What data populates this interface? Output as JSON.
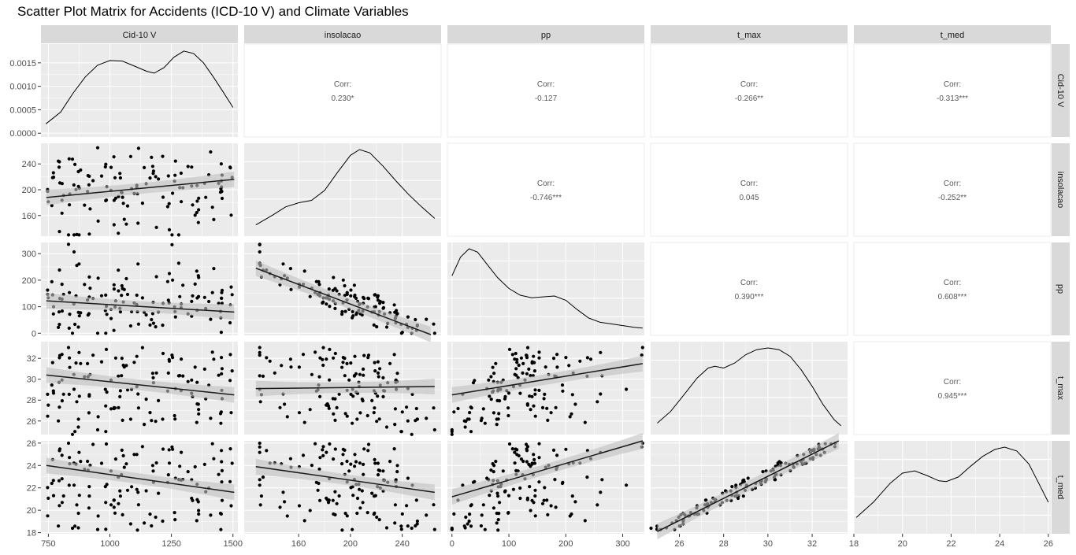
{
  "chart_data": {
    "type": "scatter",
    "title": "Scatter Plot Matrix for Accidents (ICD-10 V) and Climate Variables",
    "variables": [
      "Cid-10 V",
      "insolacao",
      "pp",
      "t_max",
      "t_med"
    ],
    "corr_label": "Corr:",
    "correlations": [
      {
        "row": 0,
        "col": 1,
        "value": "0.230*"
      },
      {
        "row": 0,
        "col": 2,
        "value": "-0.127"
      },
      {
        "row": 0,
        "col": 3,
        "value": "-0.266**"
      },
      {
        "row": 0,
        "col": 4,
        "value": "-0.313***"
      },
      {
        "row": 1,
        "col": 2,
        "value": "-0.746***"
      },
      {
        "row": 1,
        "col": 3,
        "value": "0.045"
      },
      {
        "row": 1,
        "col": 4,
        "value": "-0.252**"
      },
      {
        "row": 2,
        "col": 3,
        "value": "0.390***"
      },
      {
        "row": 2,
        "col": 4,
        "value": "0.608***"
      },
      {
        "row": 3,
        "col": 4,
        "value": "0.945***"
      }
    ],
    "axes": {
      "x": [
        {
          "min": 720,
          "max": 1520,
          "ticks": [
            750,
            1000,
            1250,
            1500
          ]
        },
        {
          "min": 118,
          "max": 270,
          "ticks": [
            160,
            200,
            240
          ]
        },
        {
          "min": -8,
          "max": 338,
          "ticks": [
            0,
            100,
            200,
            300
          ]
        },
        {
          "min": 24.7,
          "max": 33.6,
          "ticks": [
            26,
            28,
            30,
            32
          ]
        },
        {
          "min": 18.0,
          "max": 26.1,
          "ticks": [
            18,
            20,
            22,
            24,
            26
          ]
        }
      ],
      "y": [
        {
          "min": -8e-05,
          "max": 0.0019,
          "ticks": [
            0.0,
            0.0005,
            0.001,
            0.0015
          ],
          "tick_labels": [
            "0.0000",
            "0.0005",
            "0.0010",
            "0.0015"
          ]
        },
        {
          "min": 128,
          "max": 272,
          "ticks": [
            160,
            200,
            240
          ]
        },
        {
          "min": -8,
          "max": 342,
          "ticks": [
            0,
            100,
            200,
            300
          ]
        },
        {
          "min": 24.7,
          "max": 33.6,
          "ticks": [
            26,
            28,
            30,
            32
          ]
        },
        {
          "min": 17.9,
          "max": 26.2,
          "ticks": [
            18,
            20,
            22,
            24,
            26
          ]
        }
      ]
    },
    "densities": [
      [
        [
          740,
          0.0002
        ],
        [
          800,
          0.00045
        ],
        [
          850,
          0.00085
        ],
        [
          900,
          0.0012
        ],
        [
          950,
          0.00145
        ],
        [
          1000,
          0.00155
        ],
        [
          1050,
          0.00154
        ],
        [
          1100,
          0.00143
        ],
        [
          1150,
          0.00132
        ],
        [
          1180,
          0.00128
        ],
        [
          1220,
          0.0014
        ],
        [
          1260,
          0.00162
        ],
        [
          1300,
          0.00175
        ],
        [
          1340,
          0.0017
        ],
        [
          1380,
          0.0015
        ],
        [
          1420,
          0.0012
        ],
        [
          1460,
          0.00088
        ],
        [
          1500,
          0.00055
        ]
      ],
      [
        [
          127,
          0.08
        ],
        [
          140,
          0.2
        ],
        [
          150,
          0.3
        ],
        [
          160,
          0.35
        ],
        [
          170,
          0.38
        ],
        [
          180,
          0.5
        ],
        [
          190,
          0.72
        ],
        [
          200,
          0.93
        ],
        [
          207,
          1.0
        ],
        [
          215,
          0.96
        ],
        [
          225,
          0.8
        ],
        [
          235,
          0.62
        ],
        [
          245,
          0.45
        ],
        [
          255,
          0.3
        ],
        [
          265,
          0.16
        ]
      ],
      [
        [
          0,
          0.65
        ],
        [
          15,
          0.87
        ],
        [
          30,
          0.97
        ],
        [
          45,
          0.93
        ],
        [
          60,
          0.8
        ],
        [
          80,
          0.63
        ],
        [
          100,
          0.5
        ],
        [
          120,
          0.42
        ],
        [
          140,
          0.39
        ],
        [
          160,
          0.4
        ],
        [
          180,
          0.41
        ],
        [
          200,
          0.36
        ],
        [
          220,
          0.25
        ],
        [
          240,
          0.15
        ],
        [
          260,
          0.1
        ],
        [
          290,
          0.07
        ],
        [
          320,
          0.04
        ],
        [
          335,
          0.03
        ]
      ],
      [
        [
          25.0,
          0.08
        ],
        [
          25.6,
          0.22
        ],
        [
          26.3,
          0.45
        ],
        [
          26.8,
          0.62
        ],
        [
          27.3,
          0.74
        ],
        [
          27.6,
          0.76
        ],
        [
          28.0,
          0.74
        ],
        [
          28.5,
          0.8
        ],
        [
          29.0,
          0.9
        ],
        [
          29.5,
          0.96
        ],
        [
          30.0,
          0.98
        ],
        [
          30.5,
          0.96
        ],
        [
          31.0,
          0.88
        ],
        [
          31.5,
          0.72
        ],
        [
          32.0,
          0.52
        ],
        [
          32.5,
          0.3
        ],
        [
          33.0,
          0.12
        ],
        [
          33.3,
          0.05
        ]
      ],
      [
        [
          18.1,
          0.15
        ],
        [
          18.8,
          0.35
        ],
        [
          19.5,
          0.6
        ],
        [
          20.0,
          0.73
        ],
        [
          20.5,
          0.76
        ],
        [
          21.0,
          0.7
        ],
        [
          21.5,
          0.63
        ],
        [
          21.8,
          0.62
        ],
        [
          22.3,
          0.68
        ],
        [
          22.8,
          0.82
        ],
        [
          23.3,
          0.95
        ],
        [
          23.8,
          1.04
        ],
        [
          24.2,
          1.07
        ],
        [
          24.7,
          1.02
        ],
        [
          25.2,
          0.85
        ],
        [
          25.6,
          0.6
        ],
        [
          26.0,
          0.35
        ]
      ]
    ],
    "fits": {
      "1-0": [
        742,
        188,
        1505,
        216
      ],
      "2-0": [
        742,
        122,
        1505,
        80
      ],
      "2-1": [
        127,
        245,
        262,
        -5
      ],
      "3-0": [
        742,
        30.4,
        1505,
        28.5
      ],
      "3-1": [
        127,
        29.1,
        265,
        29.3
      ],
      "3-2": [
        0,
        28.5,
        335,
        31.5
      ],
      "4-0": [
        742,
        24.0,
        1505,
        21.6
      ],
      "4-1": [
        127,
        23.9,
        265,
        21.6
      ],
      "4-2": [
        0,
        21.2,
        335,
        26.2
      ],
      "4-3": [
        25.0,
        18.1,
        33.2,
        26.2
      ]
    },
    "colors": {
      "panel_bg": "#ebebeb",
      "strip_bg": "#d9d9d9",
      "grid": "#ffffff",
      "point": "#000000",
      "fit_line": "#1a1a1a",
      "band": "#bfbfbf"
    }
  }
}
